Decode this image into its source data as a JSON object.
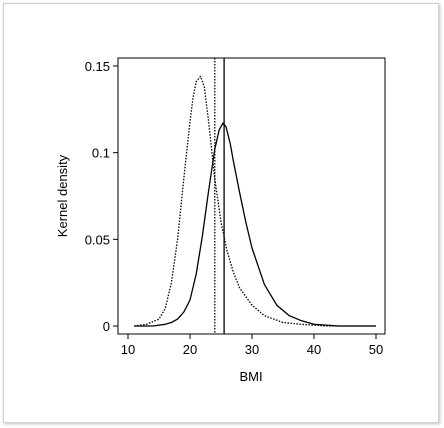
{
  "chart_data": {
    "type": "line",
    "xlabel": "BMI",
    "ylabel": "Kernel density",
    "xlim": [
      10,
      50
    ],
    "ylim": [
      0,
      0.15
    ],
    "xticks": [
      10,
      20,
      30,
      40,
      50
    ],
    "yticks": [
      {
        "value": 0,
        "label": "0"
      },
      {
        "value": 0.05,
        "label": "0.05"
      },
      {
        "value": 0.1,
        "label": "0.1"
      },
      {
        "value": 0.15,
        "label": "0.15"
      }
    ],
    "grid": false,
    "series": [
      {
        "style": "dotted",
        "x": [
          11,
          13,
          15,
          16,
          17,
          18,
          19,
          20,
          20.5,
          21,
          21.7,
          22.3,
          23,
          24,
          25,
          26,
          27,
          28,
          30,
          32,
          35,
          38,
          42,
          46,
          50
        ],
        "y": [
          0.0,
          0.001,
          0.004,
          0.01,
          0.025,
          0.05,
          0.085,
          0.118,
          0.132,
          0.141,
          0.144,
          0.138,
          0.118,
          0.085,
          0.06,
          0.043,
          0.031,
          0.022,
          0.012,
          0.006,
          0.002,
          0.001,
          0.0,
          0.0,
          0.0
        ]
      },
      {
        "style": "solid",
        "x": [
          11,
          14,
          16,
          17,
          18,
          19,
          20,
          21,
          22,
          23,
          24,
          24.7,
          25.3,
          25.8,
          26.5,
          27,
          28,
          29,
          30,
          32,
          34,
          36,
          38,
          40,
          44,
          50
        ],
        "y": [
          0.0,
          0.0,
          0.001,
          0.002,
          0.004,
          0.008,
          0.015,
          0.03,
          0.052,
          0.078,
          0.102,
          0.113,
          0.117,
          0.115,
          0.105,
          0.095,
          0.077,
          0.06,
          0.045,
          0.024,
          0.012,
          0.006,
          0.003,
          0.001,
          0.0,
          0.0
        ]
      }
    ],
    "vlines": [
      {
        "style": "dotted",
        "x": 24
      },
      {
        "style": "solid",
        "x": 25.5
      }
    ]
  }
}
